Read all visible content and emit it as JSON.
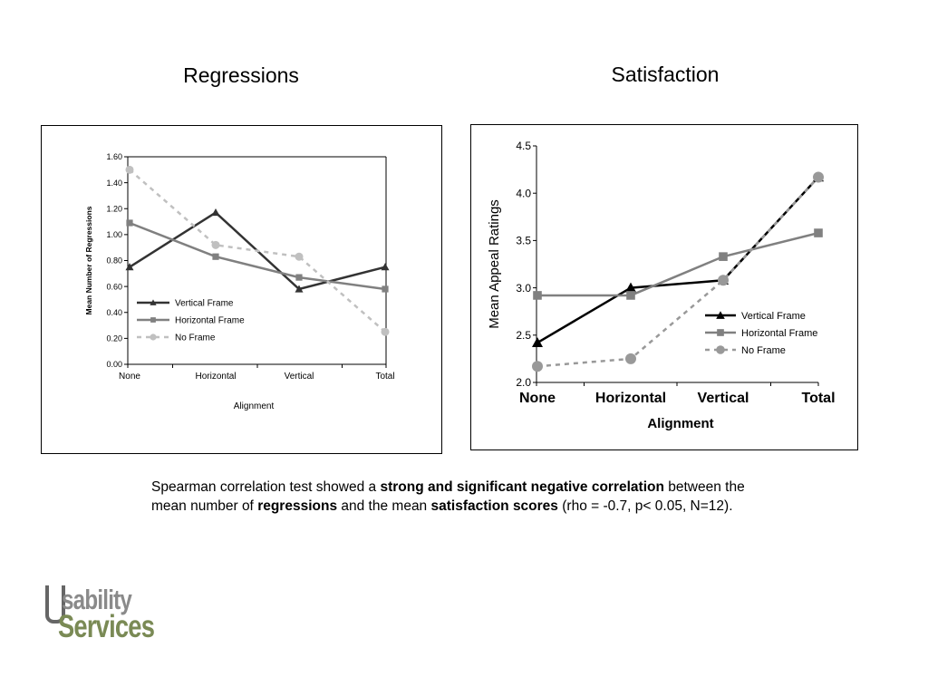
{
  "titles": {
    "left": "Regressions",
    "right": "Satisfaction"
  },
  "chart_data": [
    {
      "type": "line",
      "title": "Regressions",
      "xlabel": "Alignment",
      "ylabel": "Mean Number of Regressions",
      "categories": [
        "None",
        "Horizontal",
        "Vertical",
        "Total"
      ],
      "ylim": [
        0,
        1.6
      ],
      "yticks": [
        "0.00",
        "0.20",
        "0.40",
        "0.60",
        "0.80",
        "1.00",
        "1.20",
        "1.40",
        "1.60"
      ],
      "grid": false,
      "legend": "bottom-left",
      "series": [
        {
          "name": "Vertical Frame",
          "values": [
            0.75,
            1.17,
            0.58,
            0.75
          ],
          "color": "#333333",
          "marker": "triangle"
        },
        {
          "name": "Horizontal Frame",
          "values": [
            1.09,
            0.83,
            0.67,
            0.58
          ],
          "color": "#808080",
          "marker": "square"
        },
        {
          "name": "No Frame",
          "values": [
            1.5,
            0.92,
            0.83,
            0.25
          ],
          "color": "#c0c0c0",
          "marker": "circle"
        }
      ]
    },
    {
      "type": "line",
      "title": "Satisfaction",
      "xlabel": "Alignment",
      "ylabel": "Mean Appeal Ratings",
      "categories": [
        "None",
        "Horizontal",
        "Vertical",
        "Total"
      ],
      "ylim": [
        2.0,
        4.5
      ],
      "yticks": [
        "2.0",
        "2.5",
        "3.0",
        "3.5",
        "4.0",
        "4.5"
      ],
      "grid": false,
      "legend": "right",
      "series": [
        {
          "name": "Vertical Frame",
          "values": [
            2.42,
            3.0,
            3.08,
            4.17
          ],
          "color": "#000000",
          "marker": "triangle"
        },
        {
          "name": "Horizontal Frame",
          "values": [
            2.92,
            2.92,
            3.33,
            3.58
          ],
          "color": "#808080",
          "marker": "square"
        },
        {
          "name": "No Frame",
          "values": [
            2.17,
            2.25,
            3.08,
            4.17
          ],
          "color": "#999999",
          "marker": "circle"
        }
      ]
    }
  ],
  "caption": {
    "p1": "Spearman correlation test showed a ",
    "b1": "strong and significant negative correlation",
    "p2": " between the mean number of ",
    "b2": "regressions",
    "p3": " and the mean ",
    "b3": "satisfaction scores",
    "p4": " (rho = -0.7, p< 0.05, N=12)."
  },
  "logo": {
    "line1": "sability",
    "line2": "Services"
  }
}
